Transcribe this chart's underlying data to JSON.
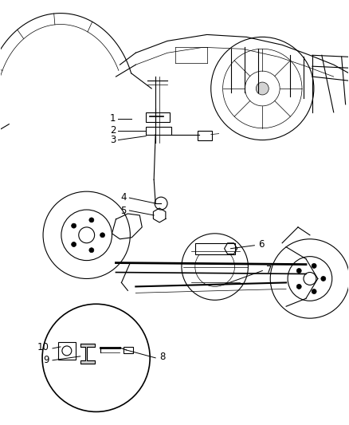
{
  "bg_color": "#ffffff",
  "line_color": "#000000",
  "fig_width": 4.38,
  "fig_height": 5.33,
  "dpi": 100,
  "label_fontsize": 8.5
}
